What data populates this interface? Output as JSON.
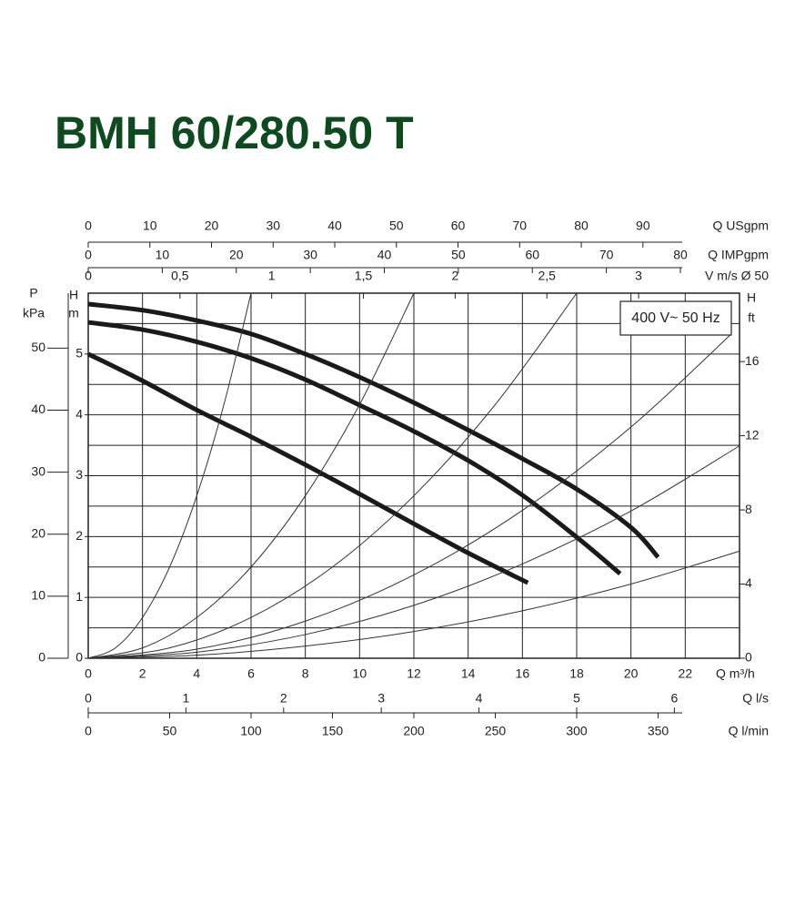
{
  "chart_data": {
    "type": "line",
    "title": "BMH 60/280.50 T",
    "legend": "400 V~ 50 Hz",
    "grid": true,
    "hgrid": [
      0,
      0.5,
      1,
      1.5,
      2,
      2.5,
      3,
      3.5,
      4,
      4.5,
      5,
      5.5,
      6
    ],
    "x_axes": [
      {
        "label": "Q m³/h",
        "xlim": [
          0,
          24
        ],
        "xticks": [
          0,
          2,
          4,
          6,
          8,
          10,
          12,
          14,
          16,
          18,
          20,
          22
        ]
      },
      {
        "label": "Q USgpm",
        "xlim": [
          0,
          105.67
        ],
        "xticks": [
          0,
          10,
          20,
          30,
          40,
          50,
          60,
          70,
          80,
          90
        ]
      },
      {
        "label": "Q IMPgpm",
        "xlim": [
          0,
          87.99
        ],
        "xticks": [
          0,
          10,
          20,
          30,
          40,
          50,
          60,
          70,
          80
        ]
      },
      {
        "label": "V m/s Ø 50",
        "xlim": [
          0,
          3.55
        ],
        "xticks": [
          0,
          {
            "value": 0.5,
            "label": "0,5"
          },
          1,
          {
            "value": 1.5,
            "label": "1,5"
          },
          2,
          {
            "value": 2.5,
            "label": "2,5"
          },
          3
        ]
      },
      {
        "label": "Q l/s",
        "xlim": [
          0,
          6.667
        ],
        "xticks": [
          0,
          1,
          2,
          3,
          4,
          5,
          6
        ]
      },
      {
        "label": "Q l/min",
        "xlim": [
          0,
          400
        ],
        "xticks": [
          0,
          50,
          100,
          150,
          200,
          250,
          300,
          350
        ]
      }
    ],
    "y_axes": [
      {
        "label": [
          "H",
          "m"
        ],
        "ylim": [
          0,
          6
        ],
        "yticks": [
          0,
          1,
          2,
          3,
          4,
          5
        ]
      },
      {
        "label": [
          "P",
          "kPa"
        ],
        "ylim": [
          0,
          58.86
        ],
        "yticks": [
          0,
          10,
          20,
          30,
          40,
          50
        ]
      },
      {
        "label": [
          "H",
          "ft"
        ],
        "ylim": [
          0,
          19.69
        ],
        "yticks": [
          0,
          4,
          8,
          12,
          16
        ]
      }
    ],
    "series": [
      {
        "color": "#1a1a1a",
        "line_width": 5,
        "x": [
          0,
          2,
          4,
          6,
          8,
          10,
          12,
          14,
          16,
          18,
          20,
          21
        ],
        "values": [
          5.82,
          5.72,
          5.55,
          5.33,
          5.0,
          4.62,
          4.2,
          3.75,
          3.28,
          2.78,
          2.15,
          1.66
        ]
      },
      {
        "color": "#1a1a1a",
        "line_width": 5,
        "x": [
          0,
          2,
          4,
          6,
          8,
          10,
          12,
          14,
          16,
          18,
          19.6
        ],
        "values": [
          5.52,
          5.4,
          5.2,
          4.93,
          4.58,
          4.16,
          3.73,
          3.25,
          2.68,
          1.99,
          1.39
        ]
      },
      {
        "color": "#1a1a1a",
        "line_width": 5,
        "x": [
          0,
          2,
          4,
          6,
          8,
          10,
          12,
          14,
          16.2
        ],
        "values": [
          5.0,
          4.56,
          4.08,
          3.64,
          3.18,
          2.7,
          2.21,
          1.73,
          1.24
        ]
      },
      {
        "color": "#333333",
        "line_width": 1,
        "x": [
          0,
          1,
          2,
          3,
          4,
          5,
          6
        ],
        "values": [
          0,
          0.17,
          0.67,
          1.5,
          2.67,
          4.17,
          6.0
        ]
      },
      {
        "color": "#333333",
        "line_width": 1,
        "x": [
          0,
          2,
          4,
          6,
          8,
          10,
          12
        ],
        "values": [
          0,
          0.17,
          0.67,
          1.5,
          2.67,
          4.17,
          6.0
        ]
      },
      {
        "color": "#333333",
        "line_width": 1,
        "x": [
          0,
          3,
          6,
          9,
          12,
          15,
          18
        ],
        "values": [
          0,
          0.17,
          0.67,
          1.5,
          2.67,
          4.17,
          6.0
        ]
      },
      {
        "color": "#333333",
        "line_width": 1,
        "x": [
          0,
          4,
          8,
          12,
          16,
          20,
          23.7
        ],
        "values": [
          0,
          0.15,
          0.61,
          1.37,
          2.43,
          3.8,
          5.33
        ]
      },
      {
        "color": "#333333",
        "line_width": 1,
        "x": [
          0,
          4,
          8,
          12,
          16,
          20,
          24
        ],
        "values": [
          0,
          0.1,
          0.39,
          0.87,
          1.55,
          2.42,
          3.49
        ]
      },
      {
        "color": "#333333",
        "line_width": 1,
        "x": [
          0,
          4,
          8,
          12,
          16,
          20,
          24
        ],
        "values": [
          0,
          0.05,
          0.2,
          0.44,
          0.78,
          1.22,
          1.76
        ]
      }
    ]
  }
}
